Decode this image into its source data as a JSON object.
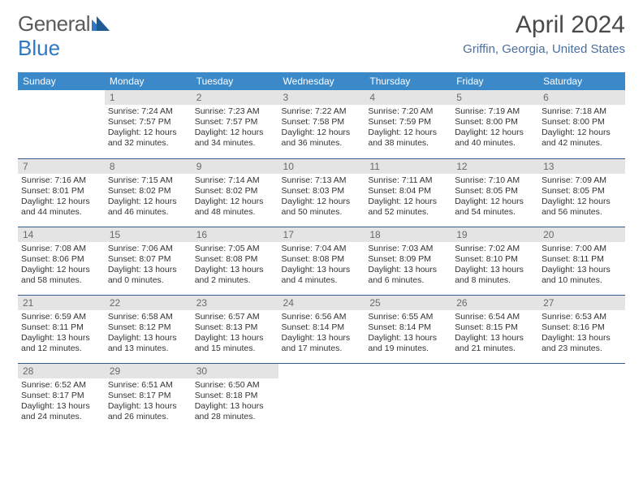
{
  "brand": {
    "word1": "General",
    "word2": "Blue"
  },
  "title": "April 2024",
  "location": "Griffin, Georgia, United States",
  "colors": {
    "header_bg": "#3b89c9",
    "header_text": "#ffffff",
    "row_border": "#2f5a8a",
    "daynum_bg": "#e4e4e4",
    "daynum_text": "#6a6a6a",
    "body_text": "#333333",
    "location_text": "#4a6fa0",
    "logo_gray": "#5b5b5b",
    "logo_blue": "#2f78c2"
  },
  "day_headers": [
    "Sunday",
    "Monday",
    "Tuesday",
    "Wednesday",
    "Thursday",
    "Friday",
    "Saturday"
  ],
  "weeks": [
    [
      {
        "n": "",
        "sr": "",
        "ss": "",
        "dl": ""
      },
      {
        "n": "1",
        "sr": "Sunrise: 7:24 AM",
        "ss": "Sunset: 7:57 PM",
        "dl": "Daylight: 12 hours and 32 minutes."
      },
      {
        "n": "2",
        "sr": "Sunrise: 7:23 AM",
        "ss": "Sunset: 7:57 PM",
        "dl": "Daylight: 12 hours and 34 minutes."
      },
      {
        "n": "3",
        "sr": "Sunrise: 7:22 AM",
        "ss": "Sunset: 7:58 PM",
        "dl": "Daylight: 12 hours and 36 minutes."
      },
      {
        "n": "4",
        "sr": "Sunrise: 7:20 AM",
        "ss": "Sunset: 7:59 PM",
        "dl": "Daylight: 12 hours and 38 minutes."
      },
      {
        "n": "5",
        "sr": "Sunrise: 7:19 AM",
        "ss": "Sunset: 8:00 PM",
        "dl": "Daylight: 12 hours and 40 minutes."
      },
      {
        "n": "6",
        "sr": "Sunrise: 7:18 AM",
        "ss": "Sunset: 8:00 PM",
        "dl": "Daylight: 12 hours and 42 minutes."
      }
    ],
    [
      {
        "n": "7",
        "sr": "Sunrise: 7:16 AM",
        "ss": "Sunset: 8:01 PM",
        "dl": "Daylight: 12 hours and 44 minutes."
      },
      {
        "n": "8",
        "sr": "Sunrise: 7:15 AM",
        "ss": "Sunset: 8:02 PM",
        "dl": "Daylight: 12 hours and 46 minutes."
      },
      {
        "n": "9",
        "sr": "Sunrise: 7:14 AM",
        "ss": "Sunset: 8:02 PM",
        "dl": "Daylight: 12 hours and 48 minutes."
      },
      {
        "n": "10",
        "sr": "Sunrise: 7:13 AM",
        "ss": "Sunset: 8:03 PM",
        "dl": "Daylight: 12 hours and 50 minutes."
      },
      {
        "n": "11",
        "sr": "Sunrise: 7:11 AM",
        "ss": "Sunset: 8:04 PM",
        "dl": "Daylight: 12 hours and 52 minutes."
      },
      {
        "n": "12",
        "sr": "Sunrise: 7:10 AM",
        "ss": "Sunset: 8:05 PM",
        "dl": "Daylight: 12 hours and 54 minutes."
      },
      {
        "n": "13",
        "sr": "Sunrise: 7:09 AM",
        "ss": "Sunset: 8:05 PM",
        "dl": "Daylight: 12 hours and 56 minutes."
      }
    ],
    [
      {
        "n": "14",
        "sr": "Sunrise: 7:08 AM",
        "ss": "Sunset: 8:06 PM",
        "dl": "Daylight: 12 hours and 58 minutes."
      },
      {
        "n": "15",
        "sr": "Sunrise: 7:06 AM",
        "ss": "Sunset: 8:07 PM",
        "dl": "Daylight: 13 hours and 0 minutes."
      },
      {
        "n": "16",
        "sr": "Sunrise: 7:05 AM",
        "ss": "Sunset: 8:08 PM",
        "dl": "Daylight: 13 hours and 2 minutes."
      },
      {
        "n": "17",
        "sr": "Sunrise: 7:04 AM",
        "ss": "Sunset: 8:08 PM",
        "dl": "Daylight: 13 hours and 4 minutes."
      },
      {
        "n": "18",
        "sr": "Sunrise: 7:03 AM",
        "ss": "Sunset: 8:09 PM",
        "dl": "Daylight: 13 hours and 6 minutes."
      },
      {
        "n": "19",
        "sr": "Sunrise: 7:02 AM",
        "ss": "Sunset: 8:10 PM",
        "dl": "Daylight: 13 hours and 8 minutes."
      },
      {
        "n": "20",
        "sr": "Sunrise: 7:00 AM",
        "ss": "Sunset: 8:11 PM",
        "dl": "Daylight: 13 hours and 10 minutes."
      }
    ],
    [
      {
        "n": "21",
        "sr": "Sunrise: 6:59 AM",
        "ss": "Sunset: 8:11 PM",
        "dl": "Daylight: 13 hours and 12 minutes."
      },
      {
        "n": "22",
        "sr": "Sunrise: 6:58 AM",
        "ss": "Sunset: 8:12 PM",
        "dl": "Daylight: 13 hours and 13 minutes."
      },
      {
        "n": "23",
        "sr": "Sunrise: 6:57 AM",
        "ss": "Sunset: 8:13 PM",
        "dl": "Daylight: 13 hours and 15 minutes."
      },
      {
        "n": "24",
        "sr": "Sunrise: 6:56 AM",
        "ss": "Sunset: 8:14 PM",
        "dl": "Daylight: 13 hours and 17 minutes."
      },
      {
        "n": "25",
        "sr": "Sunrise: 6:55 AM",
        "ss": "Sunset: 8:14 PM",
        "dl": "Daylight: 13 hours and 19 minutes."
      },
      {
        "n": "26",
        "sr": "Sunrise: 6:54 AM",
        "ss": "Sunset: 8:15 PM",
        "dl": "Daylight: 13 hours and 21 minutes."
      },
      {
        "n": "27",
        "sr": "Sunrise: 6:53 AM",
        "ss": "Sunset: 8:16 PM",
        "dl": "Daylight: 13 hours and 23 minutes."
      }
    ],
    [
      {
        "n": "28",
        "sr": "Sunrise: 6:52 AM",
        "ss": "Sunset: 8:17 PM",
        "dl": "Daylight: 13 hours and 24 minutes."
      },
      {
        "n": "29",
        "sr": "Sunrise: 6:51 AM",
        "ss": "Sunset: 8:17 PM",
        "dl": "Daylight: 13 hours and 26 minutes."
      },
      {
        "n": "30",
        "sr": "Sunrise: 6:50 AM",
        "ss": "Sunset: 8:18 PM",
        "dl": "Daylight: 13 hours and 28 minutes."
      },
      {
        "n": "",
        "sr": "",
        "ss": "",
        "dl": ""
      },
      {
        "n": "",
        "sr": "",
        "ss": "",
        "dl": ""
      },
      {
        "n": "",
        "sr": "",
        "ss": "",
        "dl": ""
      },
      {
        "n": "",
        "sr": "",
        "ss": "",
        "dl": ""
      }
    ]
  ]
}
